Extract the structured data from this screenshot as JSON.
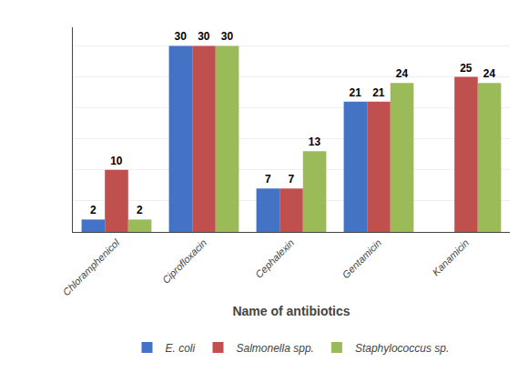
{
  "chart_data": {
    "type": "bar",
    "categories": [
      "Chloramphenicol",
      "Ciprofloxacin",
      "Cephalexin",
      "Gentamicin",
      "Kanamicin"
    ],
    "xlabel": "Name of antibiotics",
    "series": [
      {
        "name": "E. coli",
        "color": "#4472C4",
        "values": [
          2,
          30,
          7,
          21,
          0
        ]
      },
      {
        "name": "Salmonella spp.",
        "color": "#C0504D",
        "values": [
          10,
          30,
          7,
          21,
          25
        ]
      },
      {
        "name": "Staphylococcus sp.",
        "color": "#9BBB59",
        "values": [
          2,
          30,
          13,
          24,
          24
        ]
      }
    ],
    "ylim": [
      0,
      33
    ],
    "yticks": [
      0,
      5,
      10,
      15,
      20,
      25,
      30
    ],
    "grid": true,
    "legend": "bottom",
    "data_labels": true,
    "tick_labels": "x"
  }
}
